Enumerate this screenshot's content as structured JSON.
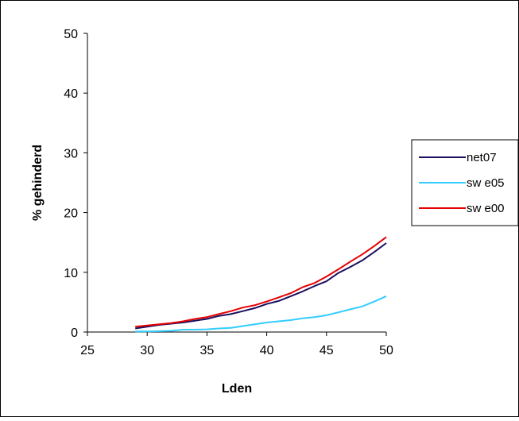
{
  "chart_data": {
    "type": "line",
    "title": "",
    "xlabel": "Lden",
    "ylabel": "% gehinderd",
    "xlim": [
      25,
      50
    ],
    "ylim": [
      0,
      50
    ],
    "x_ticks": [
      "25",
      "30",
      "35",
      "40",
      "45",
      "50"
    ],
    "y_ticks": [
      "0",
      "10",
      "20",
      "30",
      "40",
      "50"
    ],
    "grid": false,
    "legend": "right",
    "series": [
      {
        "name": "net07",
        "color": "#1a1060",
        "x": [
          29,
          30,
          31,
          32,
          33,
          34,
          35,
          36,
          37,
          38,
          39,
          40,
          41,
          42,
          43,
          44,
          45,
          46,
          47,
          48,
          49,
          50
        ],
        "y": [
          0.6,
          0.9,
          1.2,
          1.4,
          1.6,
          1.9,
          2.2,
          2.7,
          3.0,
          3.5,
          4.0,
          4.7,
          5.2,
          6.0,
          6.8,
          7.7,
          8.5,
          9.9,
          10.9,
          12.0,
          13.4,
          14.9
        ]
      },
      {
        "name": "sw e05",
        "color": "#33ccff",
        "x": [
          29,
          30,
          31,
          32,
          33,
          34,
          35,
          36,
          37,
          38,
          39,
          40,
          41,
          42,
          43,
          44,
          45,
          46,
          47,
          48,
          49,
          50
        ],
        "y": [
          0.1,
          0.1,
          0.15,
          0.2,
          0.4,
          0.4,
          0.45,
          0.6,
          0.7,
          1.0,
          1.3,
          1.6,
          1.8,
          2.0,
          2.3,
          2.5,
          2.8,
          3.3,
          3.8,
          4.3,
          5.1,
          6.0
        ]
      },
      {
        "name": "sw e00",
        "color": "#e60000",
        "x": [
          29,
          30,
          31,
          32,
          33,
          34,
          35,
          36,
          37,
          38,
          39,
          40,
          41,
          42,
          43,
          44,
          45,
          46,
          47,
          48,
          49,
          50
        ],
        "y": [
          0.9,
          1.1,
          1.3,
          1.5,
          1.8,
          2.2,
          2.5,
          3.0,
          3.5,
          4.1,
          4.5,
          5.1,
          5.8,
          6.5,
          7.5,
          8.2,
          9.3,
          10.5,
          11.8,
          13.0,
          14.4,
          15.9
        ]
      }
    ]
  }
}
